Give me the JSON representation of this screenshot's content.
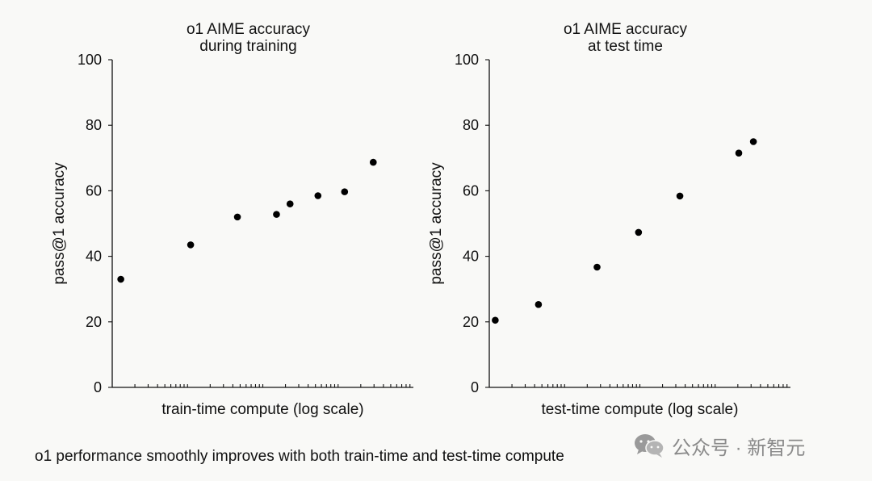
{
  "caption": "o1 performance smoothly improves with both train-time and test-time compute",
  "watermark": {
    "text": "公众号 · 新智元",
    "icon": "wechat-icon"
  },
  "colors": {
    "background": "#f9f9f7",
    "point": "#000000",
    "axis": "#111111",
    "watermark": "#8a8a8a"
  },
  "chart_data": [
    {
      "type": "scatter",
      "title": [
        "o1 AIME accuracy",
        "during training"
      ],
      "xlabel": "train-time compute (log scale)",
      "ylabel": "pass@1 accuracy",
      "xscale": "log",
      "xlim": [
        1,
        10000
      ],
      "ylim": [
        0,
        100
      ],
      "yticks": [
        0,
        20,
        40,
        60,
        80,
        100
      ],
      "x": [
        1.3,
        11,
        46,
        152,
        230,
        540,
        1220,
        2930
      ],
      "y": [
        33,
        43.5,
        52,
        52.8,
        56,
        58.5,
        59.7,
        68.7
      ]
    },
    {
      "type": "scatter",
      "title": [
        "o1 AIME accuracy",
        "at test time"
      ],
      "xlabel": "test-time compute (log scale)",
      "ylabel": "pass@1 accuracy",
      "xscale": "log",
      "xlim": [
        1,
        10000
      ],
      "ylim": [
        0,
        100
      ],
      "yticks": [
        0,
        20,
        40,
        60,
        80,
        100
      ],
      "x": [
        1.2,
        4.5,
        27,
        96,
        340,
        2060,
        3220
      ],
      "y": [
        20.5,
        25.3,
        36.7,
        47.3,
        58.4,
        71.5,
        75
      ]
    }
  ]
}
